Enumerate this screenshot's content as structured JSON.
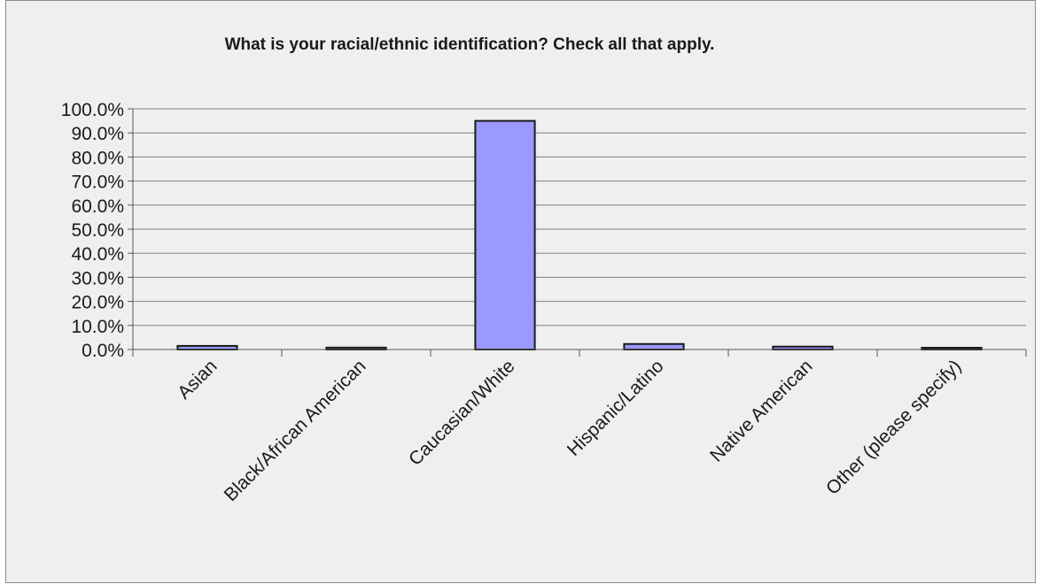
{
  "chart_data": {
    "type": "bar",
    "title": "What is your racial/ethnic identification?  Check all that apply.",
    "xlabel": "",
    "ylabel": "",
    "categories": [
      "Asian",
      "Black/African American",
      "Caucasian/White",
      "Hispanic/Latino",
      "Native American",
      "Other (please specify)"
    ],
    "values": [
      1.5,
      0.8,
      95.0,
      2.3,
      1.2,
      0.5
    ],
    "ylim": [
      0,
      100
    ],
    "yticks": [
      "0.0%",
      "10.0%",
      "20.0%",
      "30.0%",
      "40.0%",
      "50.0%",
      "60.0%",
      "70.0%",
      "80.0%",
      "90.0%",
      "100.0%"
    ],
    "grid": true,
    "legend": "none",
    "colors": {
      "bar_fill": "#9999ff",
      "bar_stroke": "#1a1a1a",
      "gridline": "#808080",
      "background": "#efefef"
    }
  }
}
